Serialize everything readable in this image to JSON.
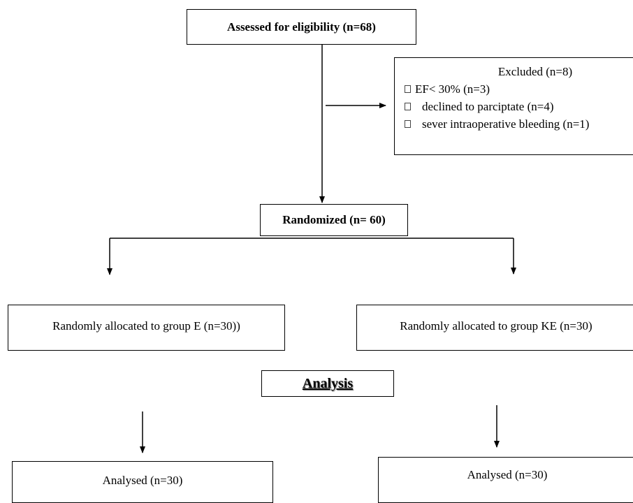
{
  "assessed": {
    "label": "Assessed for eligibility (n=68)"
  },
  "excluded": {
    "title": "Excluded (n=8)",
    "items": [
      "EF< 30%  (n=3)",
      "declined to parciptate (n=4)",
      "sever intraoperative bleeding  (n=1)"
    ]
  },
  "randomized": {
    "label": "Randomized (n= 60)"
  },
  "group_e": {
    "label": "Randomly allocated to group E (n=30))"
  },
  "group_ke": {
    "label": "Randomly allocated to group KE (n=30)"
  },
  "analysis": {
    "label": "Analysis"
  },
  "analysed_left": {
    "label": "Analysed (n=30)"
  },
  "analysed_right": {
    "label": "Analysed (n=30)"
  }
}
